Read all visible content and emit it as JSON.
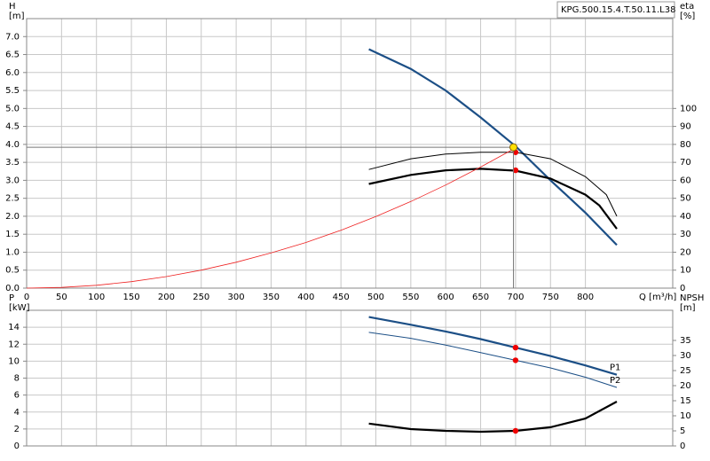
{
  "chart_data": [
    {
      "type": "line",
      "title": "KPG.500.15.4.T.50.11.L38",
      "ylabel": "H",
      "yunit": "[m]",
      "y2label": "eta",
      "y2unit": "[%]",
      "xlabel": "Q [m³/h]",
      "xlim": [
        0,
        925
      ],
      "xticks": [
        0,
        50,
        100,
        150,
        200,
        250,
        300,
        350,
        400,
        450,
        500,
        550,
        600,
        650,
        700,
        750,
        800
      ],
      "ylim": [
        0,
        7.5
      ],
      "yticks": [
        {
          "value": 0,
          "label": "0.0"
        },
        0.5,
        {
          "value": 1,
          "label": "1.0"
        },
        1.5,
        {
          "value": 2,
          "label": "2.0"
        },
        2.5,
        {
          "value": 3,
          "label": "3.0"
        },
        3.5,
        {
          "value": 4,
          "label": "4.0"
        },
        4.5,
        {
          "value": 5,
          "label": "5.0"
        },
        5.5,
        {
          "value": 6,
          "label": "6.0"
        },
        6.5,
        {
          "value": 7,
          "label": "7.0"
        }
      ],
      "y2lim": [
        0,
        150
      ],
      "y2ticks": [
        0,
        10,
        20,
        30,
        40,
        50,
        60,
        70,
        80,
        90,
        100
      ],
      "grid": true,
      "xtick_labels": true,
      "series": [
        {
          "color": "#1c4f86",
          "width": 2.2,
          "x": [
            490,
            550,
            600,
            650,
            700,
            750,
            800,
            845
          ],
          "values": [
            6.65,
            6.1,
            5.5,
            4.75,
            3.95,
            3.0,
            2.1,
            1.2
          ]
        },
        {
          "color": "#000000",
          "width": 1,
          "axis": "y2",
          "x": [
            490,
            550,
            600,
            650,
            700,
            750,
            800,
            830,
            845
          ],
          "values": [
            66,
            72,
            74.6,
            75.6,
            75.6,
            72,
            62,
            52,
            40
          ]
        },
        {
          "color": "#000000",
          "width": 2.2,
          "axis": "y2",
          "x": [
            490,
            550,
            600,
            650,
            700,
            750,
            800,
            820,
            845
          ],
          "values": [
            58,
            63,
            65.6,
            66.4,
            65.4,
            61,
            52,
            46,
            33
          ]
        },
        {
          "color": "#ee2222",
          "width": 0.8,
          "x": [
            0,
            50,
            100,
            150,
            200,
            250,
            300,
            350,
            400,
            450,
            500,
            550,
            600,
            650,
            700
          ],
          "values": [
            0,
            0.02,
            0.08,
            0.18,
            0.32,
            0.5,
            0.72,
            0.98,
            1.27,
            1.61,
            1.99,
            2.41,
            2.87,
            3.37,
            3.9
          ]
        },
        {
          "color": "#ee0000",
          "marker": true,
          "axis": "y2",
          "x": [
            700,
            700
          ],
          "values": [
            75.6,
            65.6
          ]
        },
        {
          "color": "#ffe000",
          "marker": true,
          "guides": true,
          "x": [
            697
          ],
          "values": [
            3.92
          ]
        }
      ]
    },
    {
      "type": "line",
      "ylabel": "P",
      "yunit": "[kW]",
      "y2label": "NPSH",
      "y2unit": "[m]",
      "xlim": [
        0,
        925
      ],
      "xticks": [
        0,
        50,
        100,
        150,
        200,
        250,
        300,
        350,
        400,
        450,
        500,
        550,
        600,
        650,
        700,
        750,
        800
      ],
      "ylim": [
        0,
        16
      ],
      "yticks": [
        0,
        2,
        4,
        6,
        8,
        10,
        12,
        14
      ],
      "y2lim": [
        0,
        45
      ],
      "y2ticks": [
        0,
        5,
        10,
        15,
        20,
        25,
        30,
        35
      ],
      "grid": true,
      "xtick_labels": false,
      "series": [
        {
          "name": "P1",
          "color": "#1c4f86",
          "width": 2.2,
          "x": [
            490,
            550,
            600,
            650,
            700,
            750,
            800,
            845
          ],
          "values": [
            15.2,
            14.3,
            13.5,
            12.6,
            11.6,
            10.6,
            9.5,
            8.4
          ]
        },
        {
          "name": "P2",
          "color": "#1c4f86",
          "width": 1,
          "x": [
            490,
            550,
            600,
            650,
            700,
            750,
            800,
            845
          ],
          "values": [
            13.4,
            12.7,
            11.9,
            11.0,
            10.1,
            9.2,
            8.1,
            6.9
          ]
        },
        {
          "color": "#000000",
          "width": 2.2,
          "axis": "y2",
          "x": [
            490,
            550,
            600,
            650,
            700,
            750,
            800,
            845
          ],
          "values": [
            7.4,
            5.6,
            5.0,
            4.7,
            5.0,
            6.2,
            9.1,
            14.7
          ]
        },
        {
          "color": "#ee0000",
          "marker": true,
          "x": [
            700,
            700
          ],
          "values": [
            11.6,
            10.1
          ]
        },
        {
          "color": "#ee0000",
          "marker": true,
          "axis": "y2",
          "x": [
            700
          ],
          "values": [
            5.0
          ]
        }
      ]
    }
  ]
}
